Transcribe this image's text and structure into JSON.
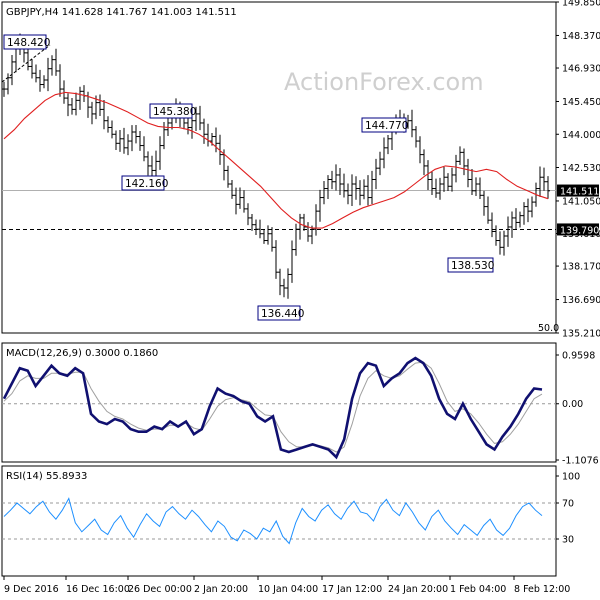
{
  "header": {
    "symbol_line": "GBPJPY,H4  141.628 141.767 141.003 141.511",
    "watermark": "ActionForex.com"
  },
  "colors": {
    "price_bars": "#000000",
    "ma": "#e02020",
    "macd": "#101070",
    "macd_signal": "#a0a0a0",
    "rsi": "#1e90ff",
    "label_border": "#000080",
    "current_price_bg": "#000000",
    "level_bg": "#000000"
  },
  "chart_data": [
    {
      "type": "ohlc",
      "title": "GBPJPY,H4  141.628 141.767 141.003 141.511",
      "ylim": [
        135.21,
        149.85
      ],
      "y_ticks": [
        "149.850",
        "148.370",
        "146.930",
        "145.450",
        "144.000",
        "142.530",
        "141.050",
        "139.610",
        "138.170",
        "136.690",
        "135.210"
      ],
      "x_ticks": [
        "9 Dec 2016",
        "16 Dec 16:00",
        "26 Dec 00:00",
        "2 Jan 20:00",
        "10 Jan 04:00",
        "17 Jan 12:00",
        "24 Jan 20:00",
        "1 Feb 04:00",
        "8 Feb 12:00"
      ],
      "close_path": [
        146.0,
        146.5,
        147.2,
        147.8,
        148.1,
        147.6,
        147.0,
        146.7,
        146.5,
        146.2,
        146.4,
        146.9,
        147.3,
        146.8,
        146.0,
        145.6,
        145.3,
        145.1,
        145.5,
        145.9,
        145.7,
        145.2,
        144.9,
        145.4,
        145.1,
        144.6,
        144.3,
        144.0,
        143.6,
        143.8,
        143.4,
        143.7,
        144.1,
        143.9,
        143.5,
        143.0,
        142.6,
        142.4,
        142.8,
        143.5,
        144.2,
        144.5,
        144.9,
        145.2,
        144.8,
        144.5,
        144.3,
        144.6,
        144.9,
        144.5,
        144.0,
        143.7,
        143.9,
        143.6,
        143.1,
        142.4,
        141.8,
        141.3,
        140.9,
        141.2,
        140.7,
        140.3,
        140.0,
        139.8,
        139.6,
        139.3,
        139.6,
        139.0,
        137.9,
        137.3,
        137.2,
        137.8,
        138.9,
        139.8,
        140.3,
        139.9,
        139.5,
        139.8,
        140.6,
        141.2,
        141.6,
        142.0,
        141.9,
        142.2,
        141.8,
        141.5,
        141.3,
        141.8,
        141.6,
        141.3,
        141.7,
        141.2,
        142.0,
        142.5,
        142.9,
        143.4,
        143.8,
        144.2,
        144.5,
        144.7,
        144.4,
        144.6,
        144.2,
        143.7,
        143.1,
        142.6,
        142.0,
        141.6,
        141.4,
        141.8,
        142.1,
        141.7,
        142.2,
        142.8,
        143.2,
        142.6,
        142.0,
        141.5,
        141.8,
        141.3,
        140.8,
        140.2,
        139.7,
        139.3,
        139.0,
        139.5,
        139.9,
        140.3,
        140.1,
        140.4,
        140.8,
        140.6,
        141.0,
        141.6,
        142.1,
        141.9,
        141.5
      ],
      "ma_path": [
        143.8,
        144.2,
        144.7,
        145.1,
        145.5,
        145.75,
        145.85,
        145.8,
        145.7,
        145.55,
        145.4,
        145.2,
        145.0,
        144.75,
        144.5,
        144.35,
        144.3,
        144.3,
        144.2,
        144.0,
        143.7,
        143.3,
        142.9,
        142.5,
        142.1,
        141.7,
        141.2,
        140.7,
        140.3,
        140.0,
        139.85,
        139.85,
        140.05,
        140.3,
        140.55,
        140.75,
        140.9,
        141.05,
        141.2,
        141.45,
        141.8,
        142.15,
        142.45,
        142.6,
        142.55,
        142.45,
        142.35,
        142.45,
        142.35,
        142.0,
        141.7,
        141.5,
        141.3,
        141.15
      ],
      "levels": [
        {
          "value": "139.790",
          "style": "dashed"
        },
        {
          "value": "141.511",
          "style": "solid-gray"
        }
      ],
      "current_price": "141.511",
      "annotations": [
        "148.420",
        "145.380",
        "142.160",
        "136.440",
        "144.770",
        "138.530"
      ],
      "panel_corner_label": "50.0",
      "series": [
        {
          "name": "Price (H4)"
        },
        {
          "name": "MA"
        }
      ]
    },
    {
      "type": "line",
      "title": "MACD(12,26,9) 0.3000 0.1860",
      "ylim": [
        -1.1076,
        0.9598
      ],
      "y_ticks": [
        "0.9598",
        "0.00",
        "-1.1076"
      ],
      "series": [
        {
          "name": "MACD",
          "values": [
            0.1,
            0.4,
            0.7,
            0.65,
            0.35,
            0.55,
            0.75,
            0.6,
            0.55,
            0.7,
            0.6,
            -0.2,
            -0.35,
            -0.4,
            -0.3,
            -0.35,
            -0.5,
            -0.55,
            -0.55,
            -0.45,
            -0.5,
            -0.35,
            -0.45,
            -0.35,
            -0.6,
            -0.5,
            -0.05,
            0.3,
            0.2,
            0.15,
            0.05,
            0.0,
            -0.25,
            -0.35,
            -0.25,
            -0.9,
            -0.95,
            -0.9,
            -0.85,
            -0.8,
            -0.85,
            -0.9,
            -1.05,
            -0.7,
            0.1,
            0.6,
            0.8,
            0.75,
            0.35,
            0.5,
            0.6,
            0.8,
            0.9,
            0.8,
            0.55,
            0.1,
            -0.2,
            -0.3,
            0.0,
            -0.3,
            -0.55,
            -0.8,
            -0.9,
            -0.65,
            -0.45,
            -0.2,
            0.1,
            0.3,
            0.28
          ]
        },
        {
          "name": "Signal",
          "values": [
            0.05,
            0.2,
            0.45,
            0.55,
            0.5,
            0.5,
            0.6,
            0.6,
            0.58,
            0.62,
            0.62,
            0.3,
            0.05,
            -0.15,
            -0.25,
            -0.3,
            -0.4,
            -0.48,
            -0.52,
            -0.5,
            -0.5,
            -0.42,
            -0.43,
            -0.38,
            -0.48,
            -0.52,
            -0.3,
            -0.05,
            0.08,
            0.12,
            0.08,
            0.04,
            -0.1,
            -0.22,
            -0.24,
            -0.55,
            -0.75,
            -0.85,
            -0.85,
            -0.82,
            -0.83,
            -0.87,
            -0.95,
            -0.85,
            -0.4,
            0.15,
            0.5,
            0.65,
            0.55,
            0.5,
            0.55,
            0.68,
            0.8,
            0.82,
            0.7,
            0.4,
            0.05,
            -0.15,
            -0.1,
            -0.2,
            -0.38,
            -0.6,
            -0.78,
            -0.75,
            -0.6,
            -0.4,
            -0.15,
            0.1,
            0.19
          ]
        }
      ]
    },
    {
      "type": "line",
      "title": "RSI(14) 55.8933",
      "ylim": [
        0,
        100
      ],
      "y_ticks": [
        "100",
        "70",
        "30",
        "0"
      ],
      "levels": [
        70,
        30
      ],
      "series": [
        {
          "name": "RSI",
          "values": [
            55,
            62,
            70,
            64,
            58,
            66,
            72,
            60,
            52,
            62,
            75,
            48,
            38,
            45,
            52,
            40,
            35,
            48,
            56,
            42,
            32,
            46,
            58,
            50,
            44,
            60,
            66,
            58,
            52,
            62,
            55,
            46,
            38,
            50,
            44,
            32,
            28,
            40,
            36,
            30,
            42,
            38,
            50,
            33,
            25,
            48,
            64,
            55,
            50,
            62,
            68,
            58,
            52,
            64,
            72,
            60,
            58,
            50,
            66,
            74,
            62,
            56,
            70,
            60,
            48,
            40,
            55,
            62,
            50,
            42,
            35,
            46,
            40,
            34,
            45,
            52,
            40,
            34,
            42,
            56,
            66,
            70,
            62,
            56
          ]
        }
      ]
    }
  ]
}
